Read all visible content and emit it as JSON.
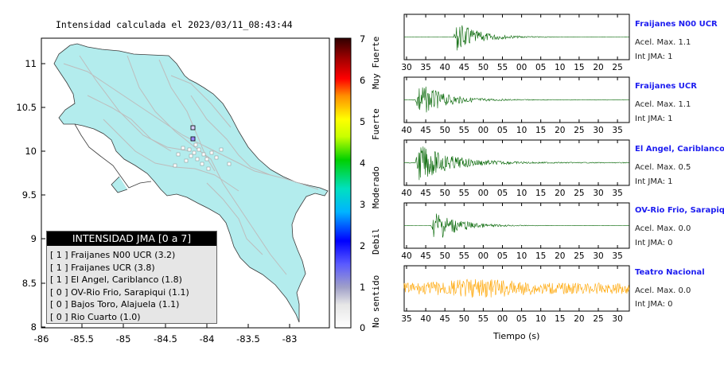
{
  "title": "Intensidad calculada el 2023/03/11_08:43:44",
  "map": {
    "y_ticks": [
      "11",
      "10.5",
      "10",
      "9.5",
      "9",
      "8.5",
      "8"
    ],
    "x_ticks": [
      "-86",
      "-85.5",
      "-85",
      "-84.5",
      "-84",
      "-83.5",
      "-83"
    ],
    "land_color": "#b3eced",
    "road_color": "#c0c0c0"
  },
  "colorbar": {
    "ticks": [
      "0",
      "1",
      "2",
      "3",
      "4",
      "5",
      "6",
      "7"
    ],
    "labels": [
      "No sentido",
      "Debil",
      "Moderado",
      "Fuerte",
      "Muy Fuerte"
    ]
  },
  "legend": {
    "header": "INTENSIDAD JMA [0 a 7]",
    "items": [
      "[ 1 ]  Fraijanes N00 UCR (3.2)",
      "[ 1 ]  Fraijanes UCR (3.8)",
      "[ 1 ]  El Angel, Cariblanco (1.8)",
      "[ 0 ]  OV-Rio Frio, Sarapiqui (1.1)",
      "[ 0 ]  Bajos Toro, Alajuela (1.1)",
      "[ 0 ]  Rio Cuarto (1.0)"
    ]
  },
  "stations": [
    {
      "name": "Fraijanes N00 UCR",
      "accel": "Acel. Max. 1.1",
      "jma": "Int JMA: 1",
      "ticks": [
        "30",
        "35",
        "40",
        "45",
        "50",
        "55",
        "00",
        "05",
        "10",
        "15",
        "20",
        "25"
      ],
      "color": "#006400"
    },
    {
      "name": "Fraijanes UCR",
      "accel": "Acel. Max. 1.1",
      "jma": "Int JMA: 1",
      "ticks": [
        "40",
        "45",
        "50",
        "55",
        "00",
        "05",
        "10",
        "15",
        "20",
        "25",
        "30",
        "35"
      ],
      "color": "#006400"
    },
    {
      "name": "El Angel, Cariblanco",
      "accel": "Acel. Max. 0.5",
      "jma": "Int JMA: 1",
      "ticks": [
        "40",
        "45",
        "50",
        "55",
        "00",
        "05",
        "10",
        "15",
        "20",
        "25",
        "30",
        "35"
      ],
      "color": "#006400"
    },
    {
      "name": "OV-Rio Frio, Sarapiqui",
      "accel": "Acel. Max. 0.0",
      "jma": "Int JMA: 0",
      "ticks": [
        "40",
        "45",
        "50",
        "55",
        "00",
        "05",
        "10",
        "15",
        "20",
        "25",
        "30",
        "35"
      ],
      "color": "#006400"
    },
    {
      "name": "Teatro Nacional",
      "accel": "Acel. Max. 0.0",
      "jma": "Int JMA: 0",
      "ticks": [
        "35",
        "40",
        "45",
        "50",
        "55",
        "00",
        "05",
        "10",
        "15",
        "20",
        "25",
        "30"
      ],
      "color": "#ffa500"
    }
  ],
  "xaxis_title": "Tiempo (s)"
}
